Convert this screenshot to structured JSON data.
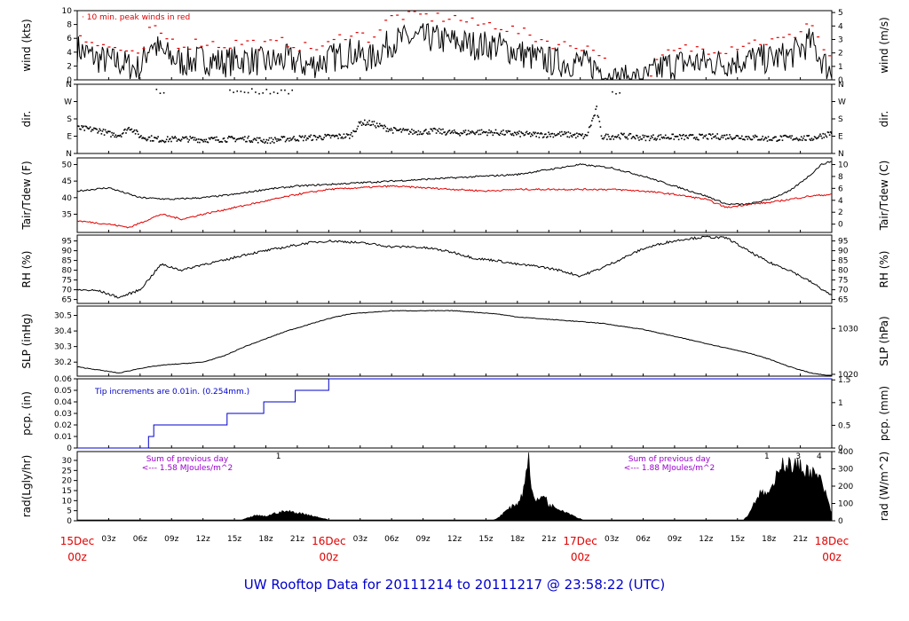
{
  "footer": {
    "title": "UW Rooftop Data for 20111214  to  20111217 @ 23:58:22  (UTC)"
  },
  "colors": {
    "frame": "#000000",
    "accent_red": "#e00000",
    "precip_blue": "#0000cc",
    "note_purple": "#9900cc",
    "footer_blue": "#0000cc"
  },
  "x_axis": {
    "range_hours": [
      0,
      72
    ],
    "minor_labels": [
      "03z",
      "06z",
      "09z",
      "12z",
      "15z",
      "18z",
      "21z",
      "03z",
      "06z",
      "09z",
      "12z",
      "15z",
      "18z",
      "21z",
      "03z",
      "06z",
      "09z",
      "12z",
      "15z",
      "18z",
      "21z"
    ],
    "major_labels": [
      {
        "day": "15Dec",
        "time": "00z",
        "hour": 0
      },
      {
        "day": "16Dec",
        "time": "00z",
        "hour": 24
      },
      {
        "day": "17Dec",
        "time": "00z",
        "hour": 48
      },
      {
        "day": "18Dec",
        "time": "00z",
        "hour": 72
      }
    ]
  },
  "panels": [
    {
      "id": "wind",
      "left_label": "wind (kts)",
      "right_label": "wind (m/s)",
      "left_ticks": [
        "0",
        "2",
        "4",
        "6",
        "8",
        "10"
      ],
      "left_range": [
        0,
        10
      ],
      "right_ticks": [
        "0",
        "1",
        "2",
        "3",
        "4",
        "5"
      ],
      "right_range": [
        0,
        5.14
      ],
      "annotation": "10 min. peak winds in red"
    },
    {
      "id": "dir",
      "left_label": "dir.",
      "right_label": "dir.",
      "left_ticks": [
        "N",
        "E",
        "S",
        "W",
        "N"
      ],
      "left_range": [
        0,
        360
      ],
      "right_ticks": [
        "N",
        "E",
        "S",
        "W",
        "N"
      ],
      "right_range": [
        0,
        360
      ]
    },
    {
      "id": "temp",
      "left_label": "Tair/Tdew (F)",
      "right_label": "Tair/Tdew (C)",
      "left_ticks": [
        "35",
        "40",
        "45",
        "50"
      ],
      "left_range": [
        29.5,
        52
      ],
      "right_ticks": [
        "0",
        "2",
        "4",
        "6",
        "8",
        "10"
      ],
      "right_range": [
        -1.39,
        11.11
      ]
    },
    {
      "id": "rh",
      "left_label": "RH (%)",
      "right_label": "RH (%)",
      "left_ticks": [
        "65",
        "70",
        "75",
        "80",
        "85",
        "90",
        "95"
      ],
      "left_range": [
        63,
        98
      ],
      "right_ticks": [
        "65",
        "70",
        "75",
        "80",
        "85",
        "90",
        "95"
      ],
      "right_range": [
        63,
        98
      ]
    },
    {
      "id": "slp",
      "left_label": "SLP (inHg)",
      "right_label": "SLP (hPa)",
      "left_ticks": [
        "30.2",
        "30.3",
        "30.4",
        "30.5"
      ],
      "left_range": [
        30.11,
        30.56
      ],
      "right_ticks": [
        "1020",
        "1030"
      ],
      "right_range": [
        1019.6,
        1034.9
      ]
    },
    {
      "id": "pcp",
      "left_label": "pcp. (in)",
      "right_label": "pcp. (mm)",
      "left_ticks": [
        "0",
        "0.01",
        "0.02",
        "0.03",
        "0.04",
        "0.05",
        "0.06"
      ],
      "left_range": [
        0,
        0.06
      ],
      "right_ticks": [
        "0",
        "0.5",
        "1",
        "1.5"
      ],
      "right_range": [
        0,
        1.524
      ],
      "annotation": "Tip increments are 0.01in. (0.254mm.)"
    },
    {
      "id": "rad",
      "left_label": "rad(Lgly/hr)",
      "right_label": "rad (W/m^2)",
      "left_ticks": [
        "0",
        "5",
        "10",
        "15",
        "20",
        "25",
        "30"
      ],
      "left_range": [
        0,
        34.4
      ],
      "right_ticks": [
        "0",
        "100",
        "200",
        "300",
        "400"
      ],
      "right_range": [
        0,
        400
      ],
      "notes": [
        {
          "line1": "Sum of previous day",
          "line2": "<--- 1.58 MJoules/m^2",
          "hour": 10.5
        },
        {
          "line1": "Sum of previous day",
          "line2": "<--- 1.88 MJoules/m^2",
          "hour": 56.5
        }
      ],
      "flags": [
        {
          "text": "1",
          "hour": 19.2
        },
        {
          "text": "1",
          "hour": 65.8
        },
        {
          "text": "3",
          "hour": 68.8
        },
        {
          "text": "4",
          "hour": 70.8
        }
      ]
    }
  ],
  "chart_data": {
    "type": "line",
    "title": "UW Rooftop Data for 20111214  to  20111217 @ 23:58:22  (UTC)",
    "x_unit": "hours since 15Dec 00z",
    "series": [
      {
        "name": "wind (kts)",
        "x": [
          0,
          2,
          4,
          6,
          7,
          8,
          10,
          12,
          14,
          16,
          18,
          20,
          22,
          24,
          26,
          28,
          30,
          32,
          34,
          36,
          38,
          40,
          42,
          44,
          46,
          48,
          50,
          51,
          52,
          54,
          56,
          58,
          60,
          62,
          64,
          66,
          68,
          70,
          71,
          72
        ],
        "y": [
          4.5,
          3,
          2.5,
          1.5,
          5.5,
          4,
          2.5,
          3,
          2.5,
          3,
          2.5,
          3,
          2,
          3,
          4,
          3,
          5.5,
          6,
          6,
          5.5,
          5,
          5,
          4,
          3,
          2.5,
          2.5,
          1.5,
          0,
          0,
          0,
          2,
          2.5,
          2.5,
          2.5,
          3,
          3,
          3.5,
          5.5,
          3,
          1
        ]
      },
      {
        "name": "10 min. peak winds",
        "x": [
          0,
          2,
          4,
          6,
          7,
          8,
          10,
          12,
          14,
          16,
          18,
          20,
          22,
          24,
          26,
          28,
          30,
          32,
          34,
          36,
          38,
          40,
          42,
          44,
          46,
          48,
          50,
          51,
          52,
          54,
          56,
          58,
          60,
          62,
          64,
          66,
          68,
          70,
          71,
          72
        ],
        "y": [
          7,
          5,
          4.5,
          3,
          7.5,
          6.5,
          5,
          5.5,
          5,
          5.5,
          5,
          5.5,
          4.5,
          5,
          7,
          6,
          9,
          9.5,
          9,
          9,
          8,
          8,
          7,
          6,
          5,
          5,
          4,
          0,
          0,
          0,
          3.5,
          4.5,
          4.5,
          4.5,
          5.5,
          5.5,
          6,
          8.5,
          5,
          3
        ]
      },
      {
        "name": "dir. (deg)",
        "x": [
          0,
          2,
          3,
          4,
          5,
          6,
          8,
          10,
          12,
          14,
          16,
          18,
          20,
          22,
          24,
          26,
          27,
          28,
          30,
          32,
          34,
          36,
          38,
          40,
          42,
          44,
          46,
          48,
          48.5,
          49.5,
          50,
          52,
          54,
          56,
          58,
          60,
          62,
          64,
          66,
          68,
          70,
          72
        ],
        "y": [
          135,
          125,
          105,
          100,
          140,
          90,
          75,
          80,
          75,
          78,
          80,
          70,
          80,
          85,
          90,
          95,
          165,
          160,
          125,
          115,
          120,
          110,
          115,
          112,
          105,
          100,
          105,
          95,
          90,
          235,
          90,
          95,
          85,
          90,
          88,
          90,
          92,
          88,
          80,
          85,
          82,
          112
        ]
      },
      {
        "name": "Tair (F)",
        "x": [
          0,
          3,
          6,
          9,
          12,
          15,
          18,
          21,
          24,
          27,
          30,
          33,
          36,
          39,
          42,
          45,
          48,
          51,
          54,
          57,
          60,
          62,
          64,
          66,
          68,
          70,
          71,
          72
        ],
        "y": [
          42,
          43,
          40,
          39.5,
          40,
          41,
          42.5,
          43.5,
          44,
          44.5,
          45,
          45.5,
          46,
          46.5,
          47,
          48.5,
          50,
          49,
          46.5,
          43.5,
          40.5,
          38,
          38,
          39.5,
          42,
          47,
          50,
          51
        ]
      },
      {
        "name": "Tdew (F)",
        "x": [
          0,
          3,
          5,
          8,
          10,
          12,
          15,
          18,
          21,
          24,
          27,
          30,
          33,
          36,
          39,
          42,
          45,
          48,
          51,
          54,
          57,
          60,
          62,
          64,
          66,
          68,
          70,
          72
        ],
        "y": [
          33,
          32,
          31,
          35,
          33.5,
          35,
          37,
          39,
          41,
          42.5,
          43,
          43.5,
          43,
          42.5,
          42,
          42.5,
          42.5,
          42.5,
          42.5,
          42,
          41,
          39.5,
          37,
          38,
          38.5,
          39.5,
          40.5,
          41
        ]
      },
      {
        "name": "RH (%)",
        "x": [
          0,
          2,
          4,
          6,
          8,
          10,
          12,
          14,
          16,
          18,
          20,
          22,
          24,
          26,
          28,
          30,
          32,
          34,
          36,
          38,
          40,
          42,
          44,
          46,
          48,
          50,
          52,
          54,
          56,
          58,
          60,
          62,
          64,
          66,
          68,
          70,
          72
        ],
        "y": [
          70,
          69.5,
          66,
          70,
          83,
          80,
          83,
          85,
          88,
          90,
          92,
          94,
          95,
          94.5,
          93.5,
          92,
          92,
          91,
          89,
          86,
          85,
          83,
          82,
          80,
          77,
          81,
          86,
          91,
          94,
          96,
          97,
          96.5,
          90,
          84,
          80,
          74,
          67
        ]
      },
      {
        "name": "SLP (inHg)",
        "x": [
          0,
          2,
          4,
          6,
          8,
          10,
          12,
          14,
          16,
          18,
          20,
          22,
          24,
          26,
          28,
          30,
          32,
          34,
          36,
          38,
          40,
          42,
          44,
          46,
          48,
          50,
          52,
          54,
          56,
          58,
          60,
          62,
          64,
          66,
          68,
          70,
          72
        ],
        "y": [
          30.17,
          30.15,
          30.13,
          30.16,
          30.18,
          30.19,
          30.2,
          30.24,
          30.3,
          30.35,
          30.4,
          30.44,
          30.48,
          30.51,
          30.52,
          30.53,
          30.53,
          30.53,
          30.53,
          30.52,
          30.51,
          30.49,
          30.48,
          30.47,
          30.46,
          30.45,
          30.43,
          30.41,
          30.38,
          30.35,
          30.32,
          30.29,
          30.26,
          30.22,
          30.17,
          30.13,
          30.11
        ]
      },
      {
        "name": "pcp. (in)",
        "x": [
          0,
          6.8,
          6.8,
          7.3,
          7.3,
          14.3,
          14.3,
          17.8,
          17.8,
          20.8,
          20.8,
          24,
          24,
          72
        ],
        "y": [
          0,
          0,
          0.01,
          0.01,
          0.02,
          0.02,
          0.03,
          0.03,
          0.04,
          0.04,
          0.05,
          0.05,
          0.06,
          0.06
        ]
      },
      {
        "name": "rad (W/m^2)",
        "x": [
          0,
          1,
          15.4,
          16,
          17,
          18,
          19,
          20,
          21,
          22,
          23,
          24,
          24.5,
          39.5,
          40,
          41,
          42,
          42.5,
          43,
          43.5,
          44,
          44.5,
          45,
          46,
          47,
          48,
          48.5,
          63.5,
          64,
          65,
          66,
          66.5,
          67,
          68,
          69,
          70,
          71,
          72
        ],
        "y": [
          5,
          0,
          0,
          10,
          30,
          25,
          45,
          55,
          45,
          35,
          20,
          5,
          0,
          0,
          10,
          60,
          100,
          150,
          380,
          130,
          110,
          160,
          90,
          70,
          40,
          10,
          0,
          0,
          30,
          150,
          160,
          190,
          340,
          320,
          310,
          280,
          230,
          40
        ]
      }
    ]
  }
}
